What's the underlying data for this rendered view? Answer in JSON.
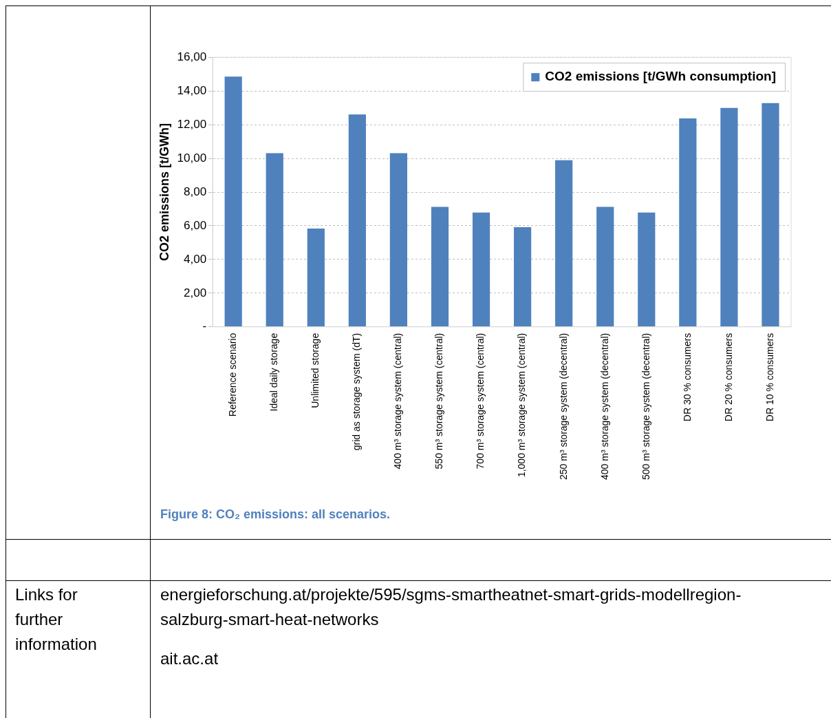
{
  "chart_data": {
    "type": "bar",
    "ylabel": "CO2 emissions [t/GWh]",
    "categories": [
      "Reference scenario",
      "Ideal daily storage",
      "Unlimited storage",
      "grid as storage system (dT)",
      "400 m³ storage system (central)",
      "550 m³ storage system (central)",
      "700 m³ storage system (central)",
      "1,000 m³ storage system (central)",
      "250 m³ storage system (decentral)",
      "400 m³ storage system (decentral)",
      "500 m³ storage system (decentral)",
      "DR 30 % consumers",
      "DR 20 % consumers",
      "DR 10 % consumers"
    ],
    "series": [
      {
        "name": "CO2 emissions [t/GWh consumption]",
        "color": "#4f81bd",
        "values": [
          14.85,
          10.31,
          5.83,
          12.61,
          10.31,
          7.12,
          6.78,
          5.92,
          9.89,
          7.12,
          6.78,
          12.37,
          12.99,
          13.28
        ]
      }
    ],
    "ylim": [
      0,
      16
    ],
    "yticks": [
      {
        "value": 0,
        "label": "-"
      },
      {
        "value": 2,
        "label": "2,00"
      },
      {
        "value": 4,
        "label": "4,00"
      },
      {
        "value": 6,
        "label": "6,00"
      },
      {
        "value": 8,
        "label": "8,00"
      },
      {
        "value": 10,
        "label": "10,00"
      },
      {
        "value": 12,
        "label": "12,00"
      },
      {
        "value": 14,
        "label": "14,00"
      },
      {
        "value": 16,
        "label": "16,00"
      }
    ],
    "grid": "y",
    "legend": "top right",
    "annotations": [
      "Figure 8: CO₂ emissions: all scenarios.",
      "Links for further information",
      "energieforschung.at/projekte/595/sgms-smartheatnet-smart-grids-modellregion-salzburg-smart-heat-networks",
      "ait.ac.at"
    ]
  }
}
